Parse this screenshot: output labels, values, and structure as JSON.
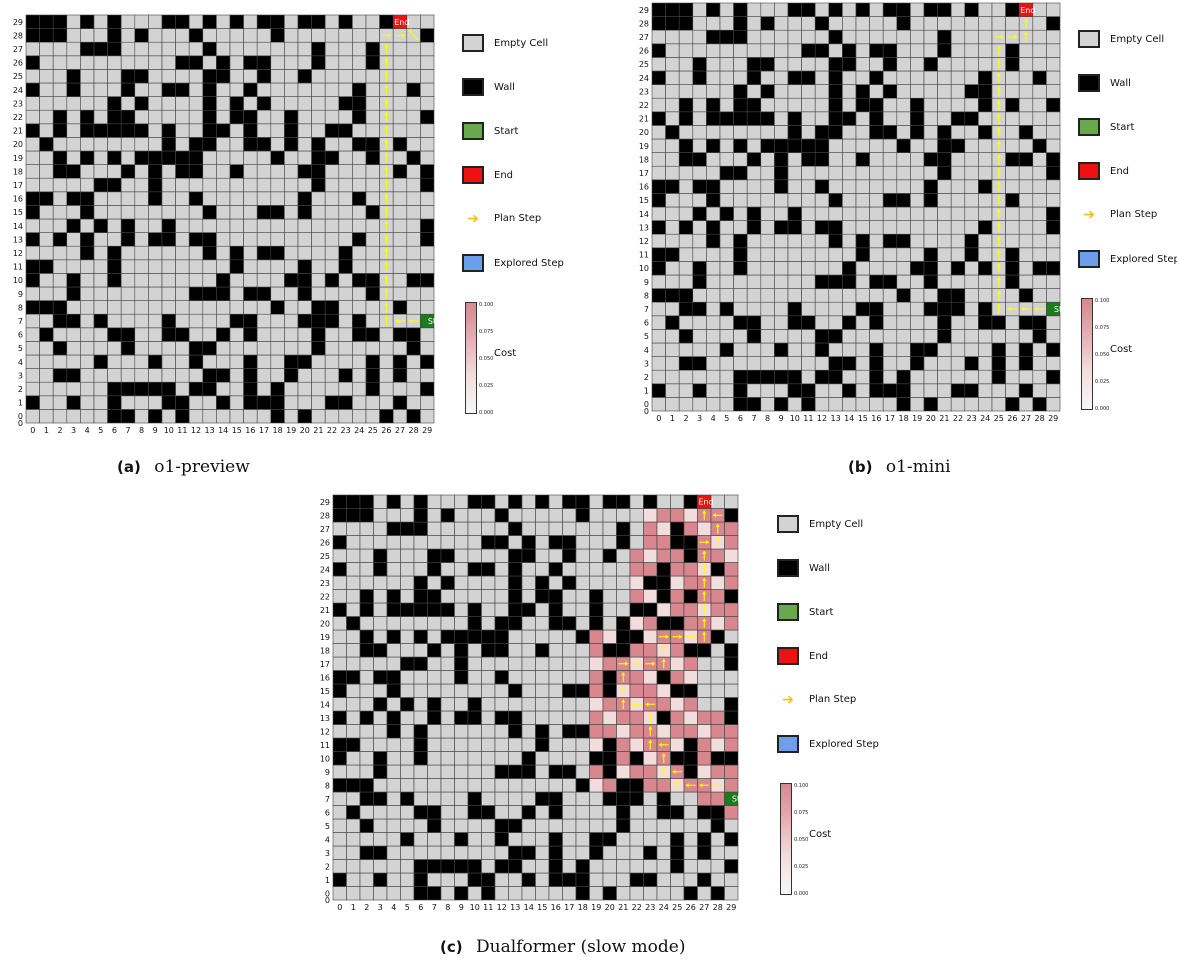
{
  "panels": [
    {
      "id": "a",
      "caption_tag": "(a)",
      "caption_text": "o1-preview",
      "walls_seed": 7,
      "start": [
        29,
        7
      ],
      "end": [
        27,
        29
      ],
      "start_label": "Start",
      "end_label": "End",
      "explored": [],
      "plan": [
        [
          28,
          7
        ],
        [
          27,
          7
        ],
        [
          26,
          7
        ],
        [
          26,
          8
        ],
        [
          26,
          9
        ],
        [
          26,
          10
        ],
        [
          26,
          11
        ],
        [
          26,
          12
        ],
        [
          26,
          13
        ],
        [
          26,
          14
        ],
        [
          26,
          15
        ],
        [
          26,
          16
        ],
        [
          26,
          17
        ],
        [
          26,
          18
        ],
        [
          26,
          19
        ],
        [
          26,
          20
        ],
        [
          26,
          21
        ],
        [
          26,
          22
        ],
        [
          26,
          23
        ],
        [
          26,
          24
        ],
        [
          26,
          25
        ],
        [
          26,
          26
        ],
        [
          26,
          27
        ],
        [
          26,
          28
        ],
        [
          27,
          28
        ],
        [
          28,
          28
        ]
      ]
    },
    {
      "id": "b",
      "caption_tag": "(b)",
      "caption_text": "o1-mini",
      "walls_seed": 7,
      "start": [
        29,
        7
      ],
      "end": [
        27,
        29
      ],
      "start_label": "Start",
      "end_label": "End",
      "explored": [],
      "plan": [
        [
          28,
          7
        ],
        [
          27,
          7
        ],
        [
          26,
          7
        ],
        [
          25,
          7
        ],
        [
          25,
          8
        ],
        [
          25,
          9
        ],
        [
          25,
          10
        ],
        [
          25,
          11
        ],
        [
          25,
          12
        ],
        [
          25,
          13
        ],
        [
          25,
          14
        ],
        [
          25,
          15
        ],
        [
          25,
          16
        ],
        [
          25,
          17
        ],
        [
          25,
          18
        ],
        [
          25,
          19
        ],
        [
          25,
          20
        ],
        [
          25,
          21
        ],
        [
          25,
          22
        ],
        [
          25,
          23
        ],
        [
          25,
          24
        ],
        [
          25,
          25
        ],
        [
          25,
          26
        ],
        [
          25,
          27
        ],
        [
          26,
          27
        ],
        [
          27,
          27
        ],
        [
          27,
          28
        ]
      ]
    },
    {
      "id": "c",
      "caption_tag": "(c)",
      "caption_text": "Dualformer",
      "caption_extra": " (slow mode)",
      "walls_seed": 7,
      "start": [
        29,
        7
      ],
      "end": [
        27,
        29
      ],
      "start_label": "Start",
      "end_label": "End",
      "explored_cost_region": [
        [
          19,
          8,
          26,
          19
        ],
        [
          19,
          10,
          26,
          11
        ],
        [
          20,
          9,
          25,
          18
        ],
        [
          22,
          19,
          27,
          25
        ],
        [
          23,
          20,
          29,
          28
        ],
        [
          27,
          6,
          29,
          13
        ]
      ],
      "plan": [
        [
          28,
          8
        ],
        [
          27,
          8
        ],
        [
          26,
          8
        ],
        [
          25,
          8
        ],
        [
          25,
          9
        ],
        [
          24,
          9
        ],
        [
          24,
          10
        ],
        [
          24,
          11
        ],
        [
          23,
          11
        ],
        [
          23,
          12
        ],
        [
          23,
          13
        ],
        [
          23,
          14
        ],
        [
          22,
          14
        ],
        [
          21,
          14
        ],
        [
          21,
          15
        ],
        [
          21,
          16
        ],
        [
          21,
          17
        ],
        [
          22,
          17
        ],
        [
          23,
          17
        ],
        [
          24,
          17
        ],
        [
          24,
          18
        ],
        [
          24,
          19
        ],
        [
          25,
          19
        ],
        [
          26,
          19
        ],
        [
          27,
          19
        ],
        [
          27,
          20
        ],
        [
          27,
          21
        ],
        [
          27,
          22
        ],
        [
          27,
          23
        ],
        [
          27,
          24
        ],
        [
          27,
          25
        ],
        [
          27,
          26
        ],
        [
          28,
          26
        ],
        [
          28,
          27
        ],
        [
          28,
          28
        ],
        [
          27,
          28
        ]
      ]
    }
  ],
  "legend": {
    "empty_cell": "Empty Cell",
    "wall": "Wall",
    "start": "Start",
    "end": "End",
    "plan_step": "Plan Step",
    "explored_step": "Explored Step",
    "cost": "Cost",
    "cbar_ticks": [
      "0.100",
      "0.075",
      "0.050",
      "0.025",
      "0.000"
    ]
  },
  "colors": {
    "empty": "#d3d3d3",
    "wall": "#000000",
    "start": "#1e7a1e",
    "start_legend": "#6aa84f",
    "end": "#ee1111",
    "explored": "#6d9eeb",
    "plan": "#f4c20d",
    "cost_high": "#d8878f",
    "cost_low": "#f3dcdc"
  },
  "axis_ticks": [
    "0",
    "1",
    "2",
    "3",
    "4",
    "5",
    "6",
    "7",
    "8",
    "9",
    "10",
    "11",
    "12",
    "13",
    "14",
    "15",
    "16",
    "17",
    "18",
    "19",
    "20",
    "21",
    "22",
    "23",
    "24",
    "25",
    "26",
    "27",
    "28",
    "29"
  ]
}
